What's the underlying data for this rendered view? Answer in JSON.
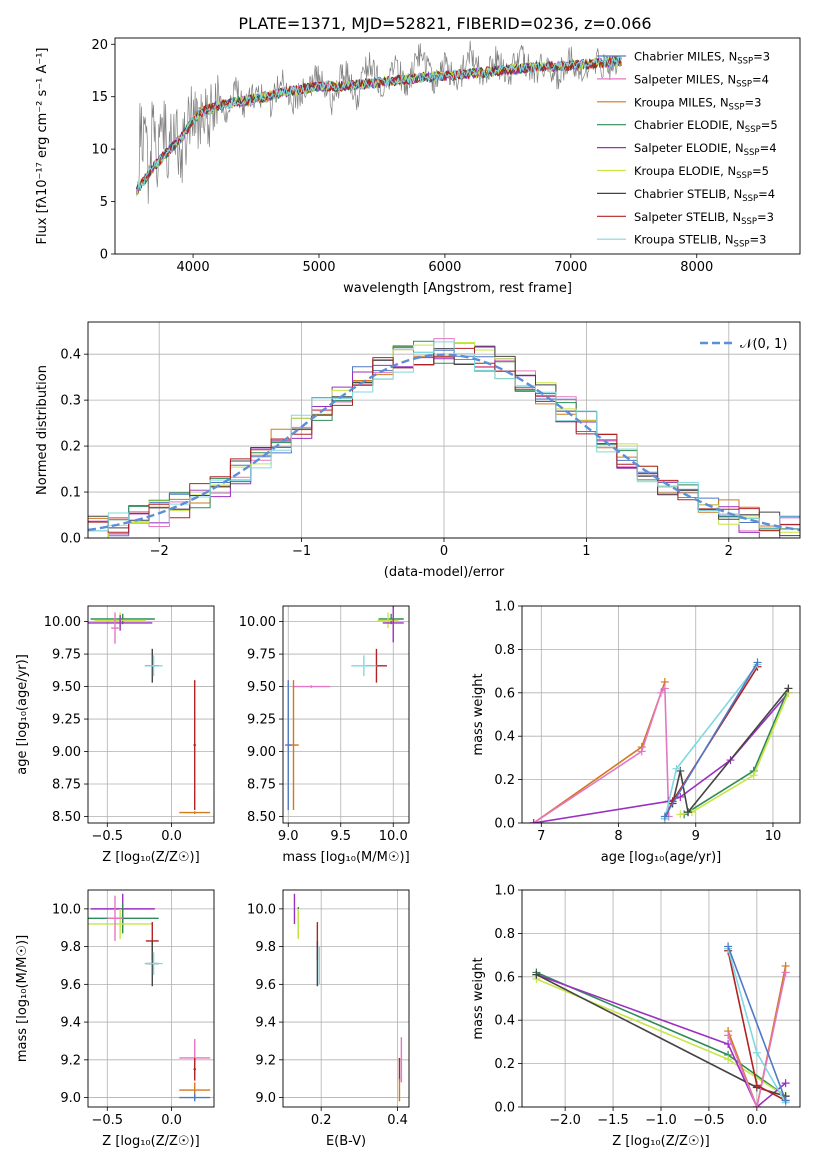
{
  "title": "PLATE=1371, MJD=52821, FIBERID=0236, z=0.066",
  "chart_data": [
    {
      "id": "spectrum",
      "type": "line",
      "xlabel": "wavelength [Angstrom, rest frame]",
      "ylabel": "Flux [fλ10⁻¹⁷ erg cm⁻² s⁻¹ A⁻¹]",
      "xlim": [
        3380,
        8820
      ],
      "ylim": [
        0,
        20.6
      ],
      "xticks": [
        4000,
        5000,
        6000,
        7000,
        8000
      ],
      "yticks": [
        0,
        5,
        10,
        15,
        20
      ],
      "grid": false,
      "legend_position": "right",
      "legend": [
        {
          "label": "Chabrier MILES, N_SSP=3",
          "color": "#4e79c7"
        },
        {
          "label": "Salpeter MILES, N_SSP=4",
          "color": "#e377c2"
        },
        {
          "label": "Kroupa MILES, N_SSP=3",
          "color": "#d2781e"
        },
        {
          "label": "Chabrier ELODIE, N_SSP=5",
          "color": "#2e8b57"
        },
        {
          "label": "Salpeter ELODIE, N_SSP=4",
          "color": "#9b30c0"
        },
        {
          "label": "Kroupa ELODIE, N_SSP=5",
          "color": "#c8e645"
        },
        {
          "label": "Chabrier STELIB, N_SSP=4",
          "color": "#444444"
        },
        {
          "label": "Salpeter STELIB, N_SSP=3",
          "color": "#b22222"
        },
        {
          "label": "Kroupa STELIB, N_SSP=3",
          "color": "#80d8e0"
        }
      ],
      "data_line_color": "#808080",
      "model_points": [
        [
          3550,
          6.0
        ],
        [
          3700,
          8.5
        ],
        [
          3900,
          11.0
        ],
        [
          4050,
          13.5
        ],
        [
          4250,
          14.3
        ],
        [
          4500,
          14.8
        ],
        [
          4800,
          15.6
        ],
        [
          5000,
          16.0
        ],
        [
          5200,
          16.0
        ],
        [
          5500,
          16.4
        ],
        [
          5800,
          16.8
        ],
        [
          6000,
          17.0
        ],
        [
          6300,
          17.3
        ],
        [
          6600,
          17.7
        ],
        [
          7000,
          18.0
        ],
        [
          7200,
          18.2
        ],
        [
          7400,
          18.4
        ]
      ],
      "data_points": [
        [
          3560,
          5.5
        ],
        [
          3580,
          13.0
        ],
        [
          3600,
          9.0
        ],
        [
          3620,
          11.5
        ],
        [
          3650,
          7.0
        ],
        [
          3680,
          13.5
        ],
        [
          3720,
          8.5
        ],
        [
          3760,
          12.5
        ],
        [
          3800,
          10.0
        ],
        [
          3850,
          13.0
        ],
        [
          3900,
          9.0
        ],
        [
          3950,
          12.0
        ],
        [
          4000,
          14.5
        ],
        [
          4050,
          11.5
        ],
        [
          4100,
          14.0
        ],
        [
          4150,
          13.0
        ],
        [
          4200,
          15.0
        ],
        [
          4250,
          12.5
        ],
        [
          4300,
          14.0
        ],
        [
          4350,
          16.0
        ],
        [
          4400,
          13.5
        ],
        [
          4500,
          15.5
        ],
        [
          4600,
          14.0
        ],
        [
          4700,
          16.5
        ],
        [
          4800,
          14.5
        ],
        [
          4900,
          16.0
        ],
        [
          5000,
          17.0
        ],
        [
          5100,
          14.5
        ],
        [
          5200,
          17.5
        ],
        [
          5300,
          15.0
        ],
        [
          5400,
          18.5
        ],
        [
          5500,
          15.5
        ],
        [
          5600,
          18.0
        ],
        [
          5700,
          16.0
        ],
        [
          5800,
          19.0
        ],
        [
          5900,
          16.5
        ],
        [
          6000,
          18.0
        ],
        [
          6100,
          16.0
        ],
        [
          6200,
          19.5
        ],
        [
          6300,
          16.5
        ],
        [
          6400,
          18.5
        ],
        [
          6500,
          17.0
        ],
        [
          6600,
          19.0
        ],
        [
          6700,
          17.5
        ],
        [
          6800,
          18.0
        ],
        [
          6900,
          17.0
        ],
        [
          7000,
          18.8
        ],
        [
          7100,
          17.0
        ],
        [
          7200,
          18.5
        ],
        [
          7300,
          17.5
        ],
        [
          7380,
          18.0
        ]
      ]
    },
    {
      "id": "residuals",
      "type": "step",
      "xlabel": "(data-model)/error",
      "ylabel": "Normed distribution",
      "xlim": [
        -2.5,
        2.5
      ],
      "ylim": [
        0,
        0.47
      ],
      "xticks": [
        -2,
        -1,
        0,
        1,
        2
      ],
      "yticks": [
        0.0,
        0.1,
        0.2,
        0.3,
        0.4
      ],
      "grid": true,
      "legend_position": "top-right",
      "legend_label": "𝒩(0, 1)",
      "gaussian_color": "#5b8fd9"
    },
    {
      "id": "age-vs-Z",
      "type": "errorbar",
      "xlabel": "Z [log₁₀(Z/Z☉)]",
      "ylabel": "age  [log₁₀(age/yr)]",
      "xlim": [
        -0.65,
        0.33
      ],
      "ylim": [
        8.45,
        10.12
      ],
      "xticks": [
        -0.5,
        0.0
      ],
      "yticks": [
        8.5,
        8.75,
        9.0,
        9.25,
        9.5,
        9.75,
        10.0
      ],
      "grid": true,
      "points": [
        {
          "color": "#2e8b57",
          "x": -0.38,
          "xerr": 0.25,
          "y": 10.02,
          "yerr": 0.04
        },
        {
          "color": "#c8e645",
          "x": -0.4,
          "xerr": 0.2,
          "y": 10.01,
          "yerr": 0.06
        },
        {
          "color": "#9b30c0",
          "x": -0.4,
          "xerr": 0.25,
          "y": 9.99,
          "yerr": 0.06
        },
        {
          "color": "#e377c2",
          "x": -0.44,
          "xerr": 0.03,
          "y": 9.95,
          "yerr": 0.12
        },
        {
          "color": "#444444",
          "x": -0.15,
          "xerr": 0.05,
          "y": 9.66,
          "yerr": 0.13
        },
        {
          "color": "#80d8e0",
          "x": -0.14,
          "xerr": 0.07,
          "y": 9.66,
          "yerr": 0.08
        },
        {
          "color": "#b22222",
          "x": 0.18,
          "xerr": 0.01,
          "y": 9.05,
          "yerr": 0.5
        },
        {
          "color": "#d2781e",
          "x": 0.18,
          "xerr": 0.12,
          "y": 8.53,
          "yerr": 0.01
        }
      ]
    },
    {
      "id": "age-vs-mass",
      "type": "errorbar",
      "xlabel": "mass [log₁₀(M/M☉)]",
      "ylabel": "",
      "xlim": [
        8.95,
        10.15
      ],
      "ylim": [
        8.45,
        10.12
      ],
      "xticks": [
        9.0,
        9.5,
        10.0
      ],
      "yticks": [
        8.5,
        8.75,
        9.0,
        9.25,
        9.5,
        9.75,
        10.0
      ],
      "grid": true,
      "points": [
        {
          "color": "#2e8b57",
          "x": 9.98,
          "xerr": 0.12,
          "y": 10.02,
          "yerr": 0.04
        },
        {
          "color": "#c8e645",
          "x": 9.95,
          "xerr": 0.1,
          "y": 10.01,
          "yerr": 0.06
        },
        {
          "color": "#9b30c0",
          "x": 10.0,
          "xerr": 0.1,
          "y": 9.99,
          "yerr": 0.15
        },
        {
          "color": "#b22222",
          "x": 9.84,
          "xerr": 0.1,
          "y": 9.66,
          "yerr": 0.13
        },
        {
          "color": "#80d8e0",
          "x": 9.72,
          "xerr": 0.12,
          "y": 9.66,
          "yerr": 0.08
        },
        {
          "color": "#e377c2",
          "x": 9.22,
          "xerr": 0.18,
          "y": 9.5,
          "yerr": 0.01
        },
        {
          "color": "#d2781e",
          "x": 9.05,
          "xerr": 0.05,
          "y": 9.05,
          "yerr": 0.5
        },
        {
          "color": "#4e79c7",
          "x": 9.0,
          "xerr": 0.03,
          "y": 9.05,
          "yerr": 0.5
        }
      ]
    },
    {
      "id": "massweight-vs-age",
      "type": "line",
      "xlabel": "age  [log₁₀(age/yr)]",
      "ylabel": "mass weight",
      "xlim": [
        6.75,
        10.35
      ],
      "ylim": [
        0,
        1.0
      ],
      "xticks": [
        7,
        8,
        9,
        10
      ],
      "yticks": [
        0.0,
        0.2,
        0.4,
        0.6,
        0.8,
        1.0
      ],
      "grid": true,
      "series": [
        {
          "color": "#d2781e",
          "x": [
            6.9,
            8.3,
            8.6
          ],
          "y": [
            0.0,
            0.35,
            0.65
          ]
        },
        {
          "color": "#e377c2",
          "x": [
            6.9,
            8.3,
            8.55,
            8.6,
            8.65
          ],
          "y": [
            0.0,
            0.33,
            0.6,
            0.62,
            0.03
          ]
        },
        {
          "color": "#9b30c0",
          "x": [
            6.9,
            8.65,
            8.8,
            9.45,
            10.2
          ],
          "y": [
            0.0,
            0.1,
            0.12,
            0.29,
            0.6
          ]
        },
        {
          "color": "#2e8b57",
          "x": [
            8.85,
            8.9,
            9.75,
            10.2
          ],
          "y": [
            0.04,
            0.05,
            0.24,
            0.62
          ]
        },
        {
          "color": "#c8e645",
          "x": [
            8.8,
            8.95,
            9.75,
            10.2
          ],
          "y": [
            0.04,
            0.05,
            0.22,
            0.6
          ]
        },
        {
          "color": "#444444",
          "x": [
            8.7,
            8.8,
            8.9,
            10.2
          ],
          "y": [
            0.09,
            0.24,
            0.05,
            0.62
          ]
        },
        {
          "color": "#b22222",
          "x": [
            8.6,
            8.7,
            9.8
          ],
          "y": [
            0.02,
            0.1,
            0.72
          ]
        },
        {
          "color": "#80d8e0",
          "x": [
            8.6,
            8.75,
            9.8
          ],
          "y": [
            0.02,
            0.25,
            0.73
          ]
        },
        {
          "color": "#4e79c7",
          "x": [
            8.6,
            9.8
          ],
          "y": [
            0.03,
            0.74
          ]
        }
      ]
    },
    {
      "id": "mass-vs-Z",
      "type": "errorbar",
      "xlabel": "Z [log₁₀(Z/Z☉)]",
      "ylabel": "mass [log₁₀(M/M☉)]",
      "xlim": [
        -0.65,
        0.33
      ],
      "ylim": [
        8.95,
        10.1
      ],
      "xticks": [
        -0.5,
        0.0
      ],
      "yticks": [
        9.0,
        9.2,
        9.4,
        9.6,
        9.8,
        10.0
      ],
      "grid": true,
      "points": [
        {
          "color": "#9b30c0",
          "x": -0.38,
          "xerr": 0.25,
          "y": 10.0,
          "yerr": 0.08
        },
        {
          "color": "#2e8b57",
          "x": -0.38,
          "xerr": 0.28,
          "y": 9.95,
          "yerr": 0.08
        },
        {
          "color": "#c8e645",
          "x": -0.4,
          "xerr": 0.25,
          "y": 9.92,
          "yerr": 0.08
        },
        {
          "color": "#e377c2",
          "x": -0.44,
          "xerr": 0.06,
          "y": 9.95,
          "yerr": 0.12
        },
        {
          "color": "#b22222",
          "x": -0.15,
          "xerr": 0.05,
          "y": 9.83,
          "yerr": 0.1
        },
        {
          "color": "#444444",
          "x": -0.15,
          "xerr": 0.05,
          "y": 9.71,
          "yerr": 0.12
        },
        {
          "color": "#80d8e0",
          "x": -0.14,
          "xerr": 0.07,
          "y": 9.71,
          "yerr": 0.06
        },
        {
          "color": "#e377c2",
          "x": 0.18,
          "xerr": 0.12,
          "y": 9.21,
          "yerr": 0.1
        },
        {
          "color": "#b22222",
          "x": 0.18,
          "xerr": 0.01,
          "y": 9.15,
          "yerr": 0.06
        },
        {
          "color": "#d2781e",
          "x": 0.18,
          "xerr": 0.12,
          "y": 9.04,
          "yerr": 0.04
        },
        {
          "color": "#4e79c7",
          "x": 0.18,
          "xerr": 0.12,
          "y": 9.0,
          "yerr": 0.02
        }
      ]
    },
    {
      "id": "mass-vs-ebv",
      "type": "errorbar",
      "xlabel": "E(B-V)",
      "ylabel": "",
      "xlim": [
        0.1,
        0.43
      ],
      "ylim": [
        8.95,
        10.1
      ],
      "xticks": [
        0.2,
        0.4
      ],
      "yticks": [
        9.0,
        9.2,
        9.4,
        9.6,
        9.8,
        10.0
      ],
      "grid": true,
      "points": [
        {
          "color": "#9b30c0",
          "x": 0.13,
          "xerr": 0.0,
          "y": 10.0,
          "yerr": 0.08
        },
        {
          "color": "#2e8b57",
          "x": 0.14,
          "xerr": 0.0,
          "y": 9.93,
          "yerr": 0.08
        },
        {
          "color": "#c8e645",
          "x": 0.14,
          "xerr": 0.0,
          "y": 9.92,
          "yerr": 0.08
        },
        {
          "color": "#b22222",
          "x": 0.19,
          "xerr": 0.0,
          "y": 9.83,
          "yerr": 0.1
        },
        {
          "color": "#444444",
          "x": 0.19,
          "xerr": 0.0,
          "y": 9.71,
          "yerr": 0.12
        },
        {
          "color": "#80d8e0",
          "x": 0.195,
          "xerr": 0.0,
          "y": 9.7,
          "yerr": 0.1
        },
        {
          "color": "#e377c2",
          "x": 0.41,
          "xerr": 0.0,
          "y": 9.2,
          "yerr": 0.12
        },
        {
          "color": "#b22222",
          "x": 0.405,
          "xerr": 0.0,
          "y": 9.15,
          "yerr": 0.06
        },
        {
          "color": "#d2781e",
          "x": 0.405,
          "xerr": 0.0,
          "y": 9.04,
          "yerr": 0.06
        }
      ]
    },
    {
      "id": "massweight-vs-Z",
      "type": "line",
      "xlabel": "Z [log₁₀(Z/Z☉)]",
      "ylabel": "mass weight",
      "xlim": [
        -2.45,
        0.45
      ],
      "ylim": [
        0,
        1.0
      ],
      "xticks": [
        -2.0,
        -1.5,
        -1.0,
        -0.5,
        0.0
      ],
      "yticks": [
        0.0,
        0.2,
        0.4,
        0.6,
        0.8,
        1.0
      ],
      "grid": true,
      "series": [
        {
          "color": "#2e8b57",
          "x": [
            -2.3,
            -0.3,
            0.3
          ],
          "y": [
            0.62,
            0.24,
            0.05
          ]
        },
        {
          "color": "#c8e645",
          "x": [
            -2.3,
            -0.3,
            0.3
          ],
          "y": [
            0.59,
            0.22,
            0.05
          ]
        },
        {
          "color": "#9b30c0",
          "x": [
            -2.3,
            -0.3,
            0.0,
            0.3
          ],
          "y": [
            0.61,
            0.29,
            0.0,
            0.11
          ]
        },
        {
          "color": "#444444",
          "x": [
            -2.3,
            0.0,
            0.3
          ],
          "y": [
            0.61,
            0.09,
            0.05
          ]
        },
        {
          "color": "#d2781e",
          "x": [
            -0.3,
            0.0,
            0.3
          ],
          "y": [
            0.35,
            0.0,
            0.65
          ]
        },
        {
          "color": "#e377c2",
          "x": [
            -0.3,
            0.0,
            0.3
          ],
          "y": [
            0.33,
            0.0,
            0.62
          ]
        },
        {
          "color": "#b22222",
          "x": [
            -0.3,
            0.0,
            0.3
          ],
          "y": [
            0.72,
            0.1,
            0.03
          ]
        },
        {
          "color": "#80d8e0",
          "x": [
            -0.3,
            0.0,
            0.3
          ],
          "y": [
            0.73,
            0.25,
            0.02
          ]
        },
        {
          "color": "#4e79c7",
          "x": [
            -0.3,
            0.3
          ],
          "y": [
            0.74,
            0.03
          ]
        }
      ]
    }
  ]
}
